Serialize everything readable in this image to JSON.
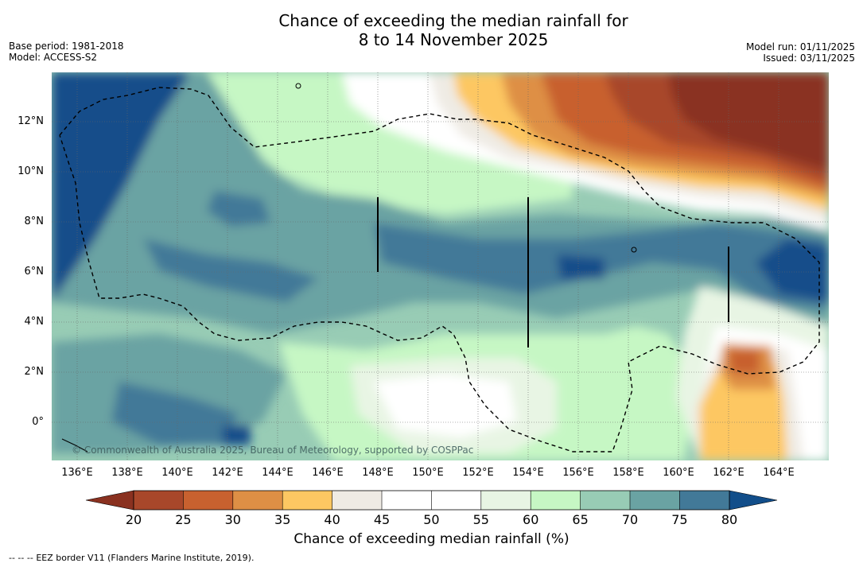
{
  "title": {
    "line1": "Chance of exceeding the median rainfall for",
    "line2": "8 to 14 November 2025"
  },
  "meta_left": {
    "base_period": "Base period: 1981-2018",
    "model": "Model: ACCESS-S2"
  },
  "meta_right": {
    "model_run": "Model run: 01/11/2025",
    "issued": "Issued: 03/11/2025"
  },
  "map": {
    "lat_labels": [
      "12°N",
      "10°N",
      "8°N",
      "6°N",
      "4°N",
      "2°N",
      "0°"
    ],
    "lon_labels": [
      "136°E",
      "138°E",
      "140°E",
      "142°E",
      "144°E",
      "146°E",
      "148°E",
      "150°E",
      "152°E",
      "154°E",
      "156°E",
      "158°E",
      "160°E",
      "162°E",
      "164°E"
    ],
    "copyright": "© Commonwealth of Australia 2025, Bureau of Meteorology, supported by COSPPac"
  },
  "colorbar": {
    "ticks": [
      "20",
      "25",
      "30",
      "35",
      "40",
      "45",
      "50",
      "55",
      "60",
      "65",
      "70",
      "75",
      "80"
    ],
    "colors": [
      "#a8472a",
      "#c8612f",
      "#de8f45",
      "#fdc762",
      "#efebe4",
      "#ffffff",
      "#ffffff",
      "#e8f5e4",
      "#c6f7c4",
      "#98ccb5",
      "#6aa3a3",
      "#427998"
    ],
    "low_end_color": "#8a3120",
    "high_end_color": "#124e8a",
    "title": "Chance of exceeding median rainfall (%)"
  },
  "footnote": {
    "dashes": "--  --  --",
    "text": "EEZ border V11 (Flanders Marine Institute, 2019)."
  }
}
